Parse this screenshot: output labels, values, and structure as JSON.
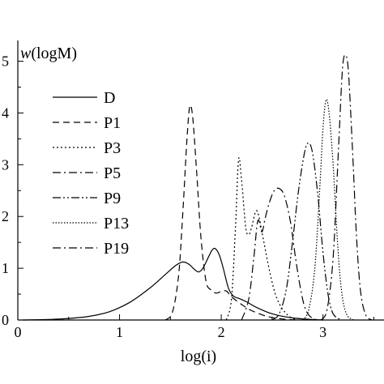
{
  "chart_data": {
    "type": "line",
    "xlabel": "log(i)",
    "ylabel_italic": "w",
    "ylabel_rest": "(logM)",
    "xlim": [
      0,
      3.6
    ],
    "ylim": [
      0,
      5.4
    ],
    "x_ticks": [
      0,
      1,
      2,
      3
    ],
    "x_tick_labels": [
      "0",
      "1",
      "2",
      "3"
    ],
    "y_ticks": [
      0,
      1,
      2,
      3,
      4,
      5
    ],
    "y_tick_labels": [
      "0",
      "1",
      "2",
      "3",
      "4",
      "5"
    ],
    "grid": false,
    "legend_position": "upper-left",
    "series": [
      {
        "name": "D",
        "dash": "solid",
        "points": [
          [
            0.05,
            0.0
          ],
          [
            0.3,
            0.01
          ],
          [
            0.5,
            0.03
          ],
          [
            0.7,
            0.07
          ],
          [
            0.9,
            0.16
          ],
          [
            1.1,
            0.34
          ],
          [
            1.3,
            0.62
          ],
          [
            1.45,
            0.88
          ],
          [
            1.55,
            1.05
          ],
          [
            1.62,
            1.12
          ],
          [
            1.68,
            1.08
          ],
          [
            1.74,
            0.97
          ],
          [
            1.78,
            0.93
          ],
          [
            1.82,
            1.0
          ],
          [
            1.87,
            1.2
          ],
          [
            1.91,
            1.35
          ],
          [
            1.94,
            1.38
          ],
          [
            1.98,
            1.26
          ],
          [
            2.02,
            1.0
          ],
          [
            2.07,
            0.62
          ],
          [
            2.12,
            0.46
          ],
          [
            2.17,
            0.42
          ],
          [
            2.25,
            0.35
          ],
          [
            2.35,
            0.24
          ],
          [
            2.5,
            0.12
          ],
          [
            2.7,
            0.04
          ],
          [
            2.9,
            0.01
          ],
          [
            3.0,
            0.0
          ]
        ]
      },
      {
        "name": "P1",
        "dash": "8 5",
        "points": [
          [
            1.45,
            0.0
          ],
          [
            1.52,
            0.15
          ],
          [
            1.58,
            0.85
          ],
          [
            1.62,
            2.0
          ],
          [
            1.66,
            3.4
          ],
          [
            1.69,
            4.12
          ],
          [
            1.72,
            3.9
          ],
          [
            1.76,
            2.8
          ],
          [
            1.8,
            1.6
          ],
          [
            1.85,
            0.75
          ],
          [
            1.9,
            0.58
          ],
          [
            1.95,
            0.52
          ],
          [
            2.0,
            0.55
          ],
          [
            2.05,
            0.56
          ],
          [
            2.1,
            0.45
          ],
          [
            2.2,
            0.3
          ],
          [
            2.3,
            0.18
          ],
          [
            2.45,
            0.07
          ],
          [
            2.6,
            0.02
          ],
          [
            2.75,
            0.0
          ]
        ]
      },
      {
        "name": "P3",
        "dash": "2 3",
        "points": [
          [
            2.05,
            0.0
          ],
          [
            2.1,
            0.4
          ],
          [
            2.14,
            1.8
          ],
          [
            2.17,
            3.1
          ],
          [
            2.2,
            2.7
          ],
          [
            2.24,
            1.8
          ],
          [
            2.27,
            1.65
          ],
          [
            2.3,
            1.8
          ],
          [
            2.34,
            2.1
          ],
          [
            2.37,
            2.0
          ],
          [
            2.42,
            1.5
          ],
          [
            2.48,
            0.9
          ],
          [
            2.55,
            0.4
          ],
          [
            2.65,
            0.1
          ],
          [
            2.75,
            0.0
          ]
        ]
      },
      {
        "name": "P5",
        "dash": "10 4 2 4",
        "points": [
          [
            2.2,
            0.0
          ],
          [
            2.27,
            0.4
          ],
          [
            2.32,
            1.2
          ],
          [
            2.36,
            1.92
          ],
          [
            2.4,
            1.7
          ],
          [
            2.43,
            1.95
          ],
          [
            2.47,
            2.25
          ],
          [
            2.52,
            2.5
          ],
          [
            2.57,
            2.54
          ],
          [
            2.62,
            2.4
          ],
          [
            2.68,
            1.9
          ],
          [
            2.73,
            1.2
          ],
          [
            2.78,
            0.6
          ],
          [
            2.83,
            0.2
          ],
          [
            2.9,
            0.03
          ],
          [
            3.0,
            0.0
          ]
        ]
      },
      {
        "name": "P9",
        "dash": "10 3 2 3 2 3",
        "points": [
          [
            2.5,
            0.0
          ],
          [
            2.57,
            0.12
          ],
          [
            2.64,
            0.6
          ],
          [
            2.7,
            1.5
          ],
          [
            2.76,
            2.5
          ],
          [
            2.82,
            3.25
          ],
          [
            2.86,
            3.42
          ],
          [
            2.9,
            3.2
          ],
          [
            2.95,
            2.4
          ],
          [
            3.0,
            1.3
          ],
          [
            3.05,
            0.5
          ],
          [
            3.1,
            0.12
          ],
          [
            3.18,
            0.0
          ]
        ]
      },
      {
        "name": "P13",
        "dash": "1.5 2",
        "points": [
          [
            2.8,
            0.0
          ],
          [
            2.86,
            0.2
          ],
          [
            2.92,
            1.0
          ],
          [
            2.97,
            2.6
          ],
          [
            3.0,
            3.7
          ],
          [
            3.03,
            4.25
          ],
          [
            3.06,
            4.0
          ],
          [
            3.1,
            3.0
          ],
          [
            3.14,
            1.6
          ],
          [
            3.18,
            0.6
          ],
          [
            3.23,
            0.12
          ],
          [
            3.3,
            0.0
          ]
        ]
      },
      {
        "name": "P19",
        "dash": "10 4 2 4",
        "points": [
          [
            2.98,
            0.0
          ],
          [
            3.04,
            0.2
          ],
          [
            3.1,
            1.2
          ],
          [
            3.15,
            3.2
          ],
          [
            3.19,
            4.8
          ],
          [
            3.22,
            5.12
          ],
          [
            3.25,
            4.8
          ],
          [
            3.29,
            3.3
          ],
          [
            3.33,
            1.6
          ],
          [
            3.37,
            0.55
          ],
          [
            3.42,
            0.1
          ],
          [
            3.48,
            0.0
          ]
        ]
      }
    ]
  }
}
